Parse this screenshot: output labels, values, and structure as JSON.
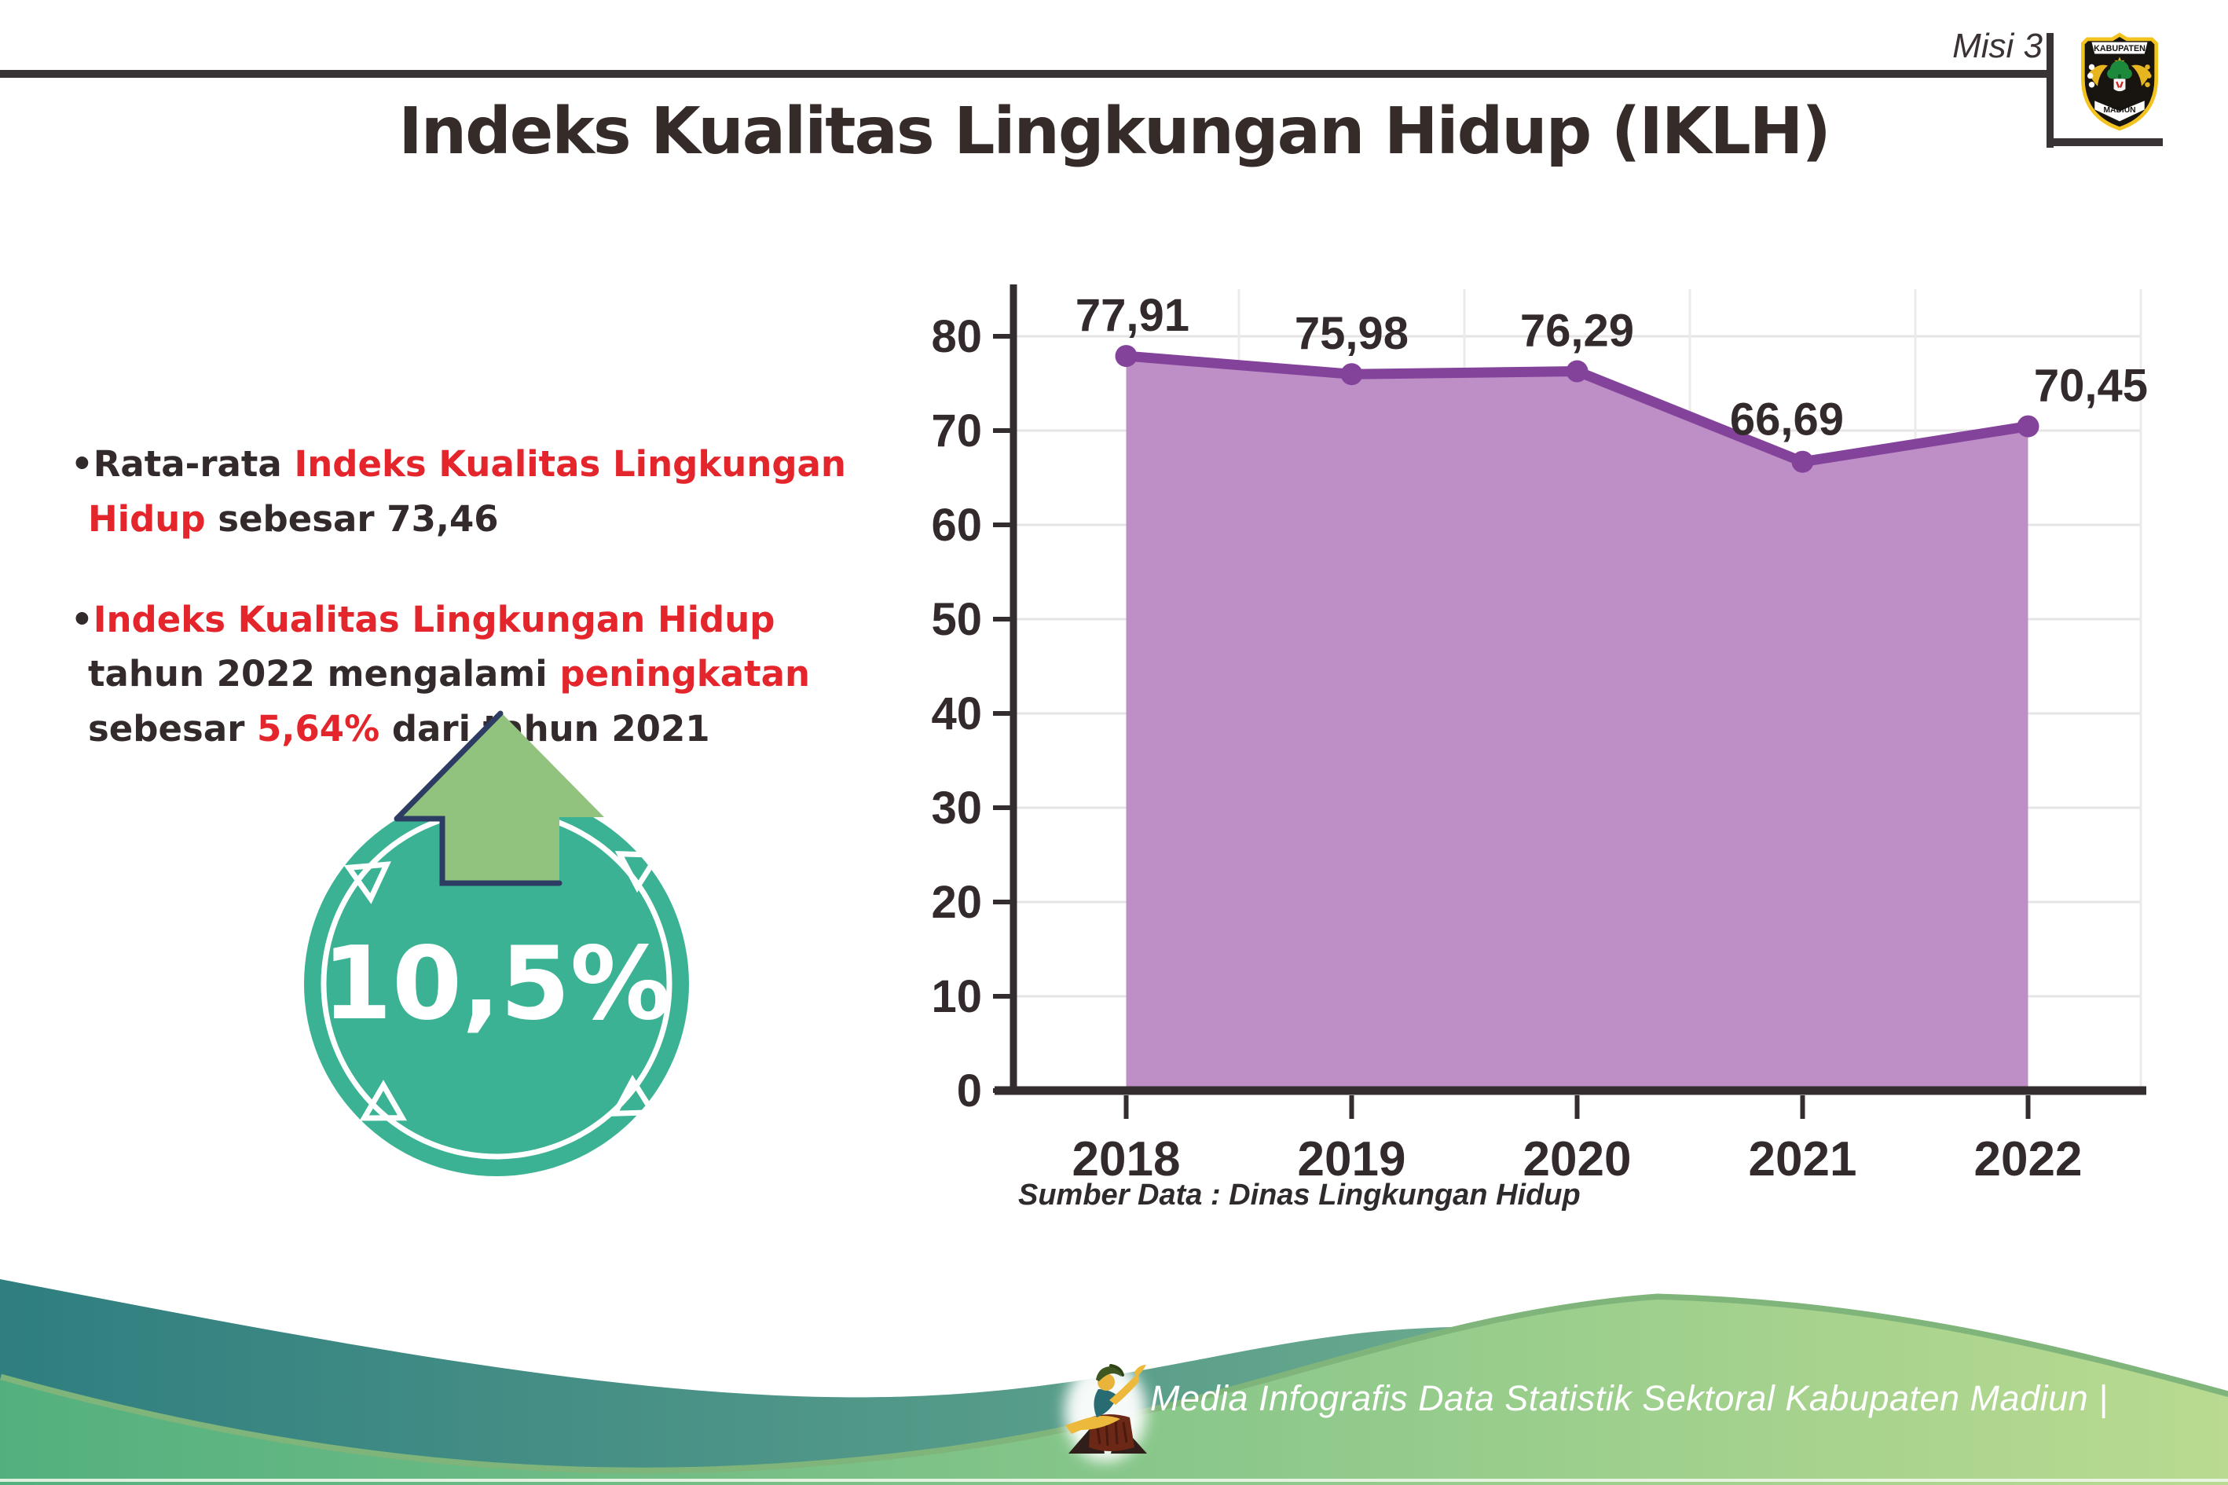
{
  "header": {
    "misi": "Misi 3",
    "title": "Indeks Kualitas Lingkungan Hidup (IKLH)",
    "logo": {
      "top": "KABUPATEN",
      "bottom": "MADIUN"
    }
  },
  "bullets": [
    {
      "segments": [
        {
          "text": "Rata-rata ",
          "style": "dark"
        },
        {
          "text": "Indeks Kualitas Lingkungan Hidup",
          "style": "red"
        },
        {
          "text": " sebesar 73,46",
          "style": "dark"
        }
      ]
    },
    {
      "segments": [
        {
          "text": "Indeks Kualitas Lingkungan Hidup",
          "style": "red"
        },
        {
          "text": " tahun 2022 mengalami ",
          "style": "dark"
        },
        {
          "text": "peningkatan",
          "style": "red"
        },
        {
          "text": " sebesar ",
          "style": "dark"
        },
        {
          "text": "5,64%",
          "style": "red"
        },
        {
          "text": " dari tahun 2021",
          "style": "dark"
        }
      ]
    }
  ],
  "badge": {
    "value": "10,5%",
    "direction": "up"
  },
  "chart_data": {
    "type": "area",
    "title": "Indeks Kualitas Lingkungan Hidup (IKLH)",
    "categories": [
      "2018",
      "2019",
      "2020",
      "2021",
      "2022"
    ],
    "values": [
      77.91,
      75.98,
      76.29,
      66.69,
      70.45
    ],
    "point_labels": [
      "77,91",
      "75,98",
      "76,29",
      "66,69",
      "70,45"
    ],
    "xlabel": "",
    "ylabel": "",
    "ylim": [
      0,
      85
    ],
    "yticks": [
      0,
      10,
      20,
      30,
      40,
      50,
      60,
      70,
      80
    ],
    "grid": true,
    "legend": "none",
    "line_color": "#83439a",
    "fill_color": "#ba89c4",
    "source_note": "Sumber Data : Dinas Lingkungan Hidup"
  },
  "footer": {
    "credit": "Media Infografis Data Statistik Sektoral Kabupaten Madiun |"
  },
  "colors": {
    "accent_red": "#e4252b",
    "text_dark": "#332a2b",
    "badge_teal": "#3bb293",
    "arrow_green": "#92c37e",
    "arrow_outline": "#2c3c62",
    "teal_wave": "#2f7e80",
    "green_wave_light": "#b9da90",
    "green_wave": "#53b07e",
    "rule_dark": "#3a3335"
  }
}
